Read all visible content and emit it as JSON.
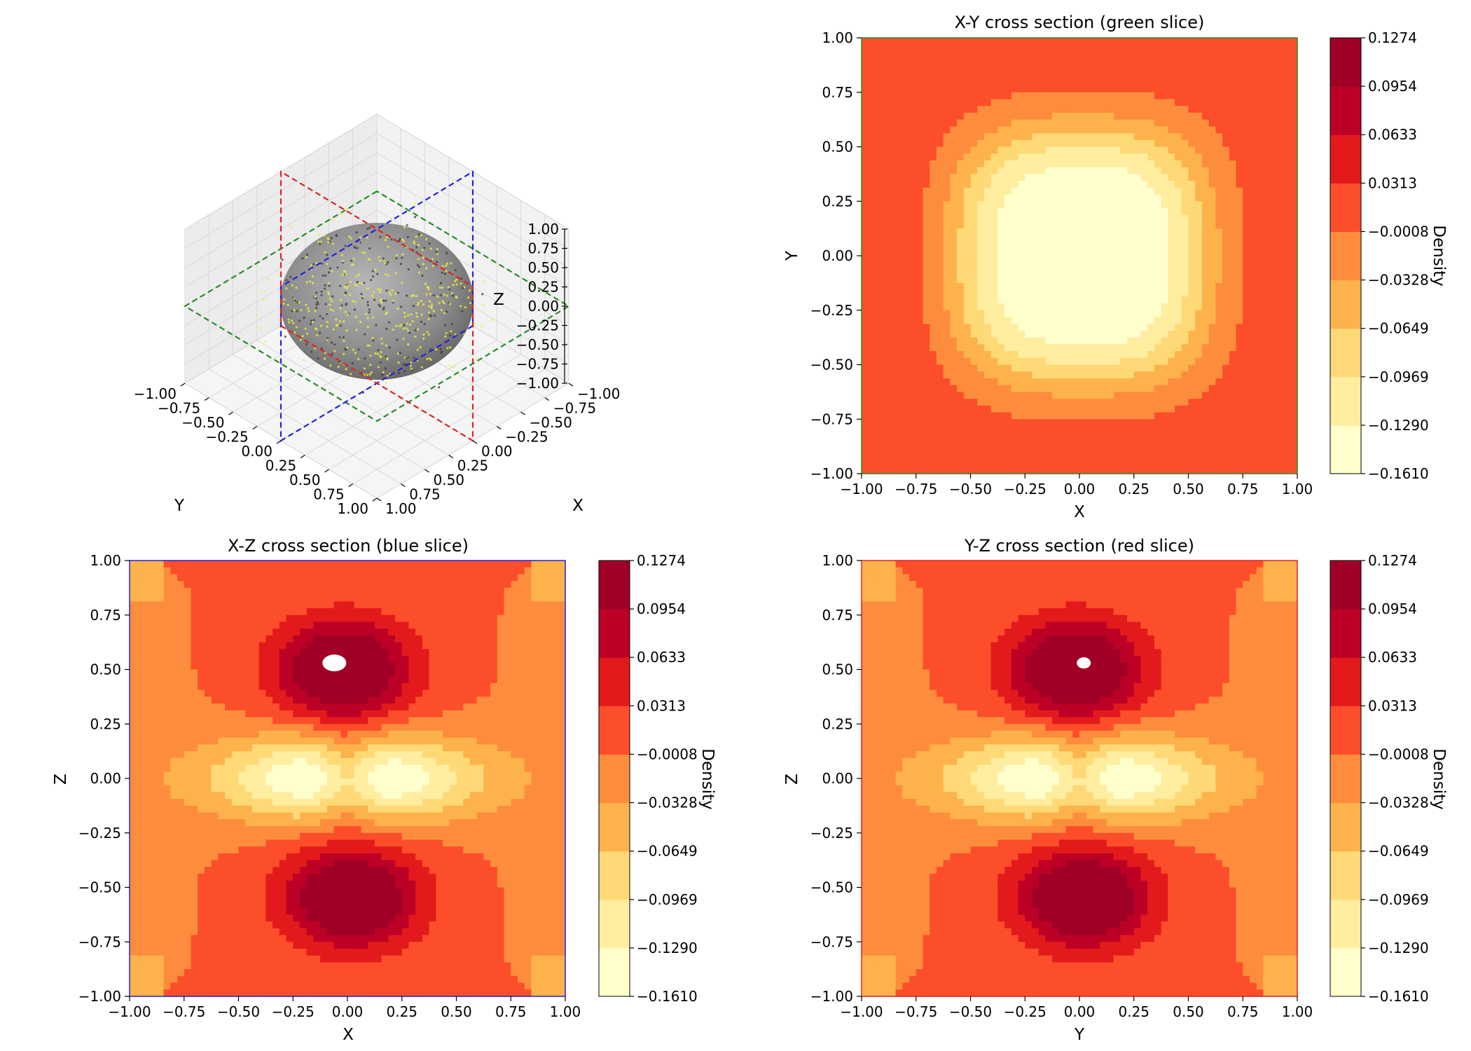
{
  "chart_data": {
    "type": "figure",
    "panel_3d": {
      "type": "scatter3d",
      "description_labels": {
        "xlabel": "X",
        "ylabel": "Y",
        "zlabel": "Z"
      },
      "x_ticks": [
        "-1.00",
        "-0.75",
        "-0.50",
        "-0.25",
        "0.00",
        "0.25",
        "0.50",
        "0.75",
        "1.00"
      ],
      "y_ticks": [
        "-1.00",
        "-0.75",
        "-0.50",
        "-0.25",
        "0.00",
        "0.25",
        "0.50",
        "0.75",
        "1.00"
      ],
      "z_ticks": [
        "1.00",
        "0.75",
        "0.50",
        "0.25",
        "0.00",
        "-0.25",
        "-0.50",
        "-0.75",
        "-1.00"
      ],
      "xlim": [
        -1,
        1
      ],
      "ylim": [
        -1,
        1
      ],
      "zlim": [
        -1,
        1
      ],
      "sphere_radius": 0.7,
      "slices": [
        {
          "name": "X-Y",
          "color": "#2a8a2a",
          "axis": "z",
          "value": 0
        },
        {
          "name": "X-Z",
          "color": "#2222dd",
          "axis": "y",
          "value": 0
        },
        {
          "name": "Y-Z",
          "color": "#dd2222",
          "axis": "x",
          "value": 0
        }
      ]
    },
    "panels": [
      {
        "id": "xy",
        "type": "heatmap",
        "title": "X-Y cross section (green slice)",
        "xlabel": "X",
        "ylabel": "Y",
        "xlim": [
          -1,
          1
        ],
        "ylim": [
          -1,
          1
        ],
        "frame_color": "#2a8a2a",
        "pattern": "ring"
      },
      {
        "id": "xz",
        "type": "heatmap",
        "title": "X-Z cross section (blue slice)",
        "xlabel": "X",
        "ylabel": "Z",
        "xlim": [
          -1,
          1
        ],
        "ylim": [
          -1,
          1
        ],
        "frame_color": "#2222dd",
        "pattern": "dz2"
      },
      {
        "id": "yz",
        "type": "heatmap",
        "title": "Y-Z cross section (red slice)",
        "xlabel": "Y",
        "ylabel": "Z",
        "xlim": [
          -1,
          1
        ],
        "ylim": [
          -1,
          1
        ],
        "frame_color": "#dd2222",
        "pattern": "dz2"
      }
    ],
    "axis_ticks": [
      "-1.00",
      "-0.75",
      "-0.50",
      "-0.25",
      "0.00",
      "0.25",
      "0.50",
      "0.75",
      "1.00"
    ],
    "colorbar": {
      "label": "Density",
      "levels": [
        -0.161,
        -0.129,
        -0.0969,
        -0.0649,
        -0.0328,
        -0.0008,
        0.0313,
        0.0633,
        0.0954,
        0.1274
      ],
      "level_labels": [
        "−0.1610",
        "−0.1290",
        "−0.0969",
        "−0.0649",
        "−0.0328",
        "−0.0008",
        "0.0313",
        "0.0633",
        "0.0954",
        "0.1274"
      ],
      "colors": [
        "#ffffcc",
        "#ffeda0",
        "#fed976",
        "#feb24c",
        "#fd8d3c",
        "#fc4e2a",
        "#e31a1c",
        "#bd0026",
        "#a00026"
      ]
    }
  }
}
